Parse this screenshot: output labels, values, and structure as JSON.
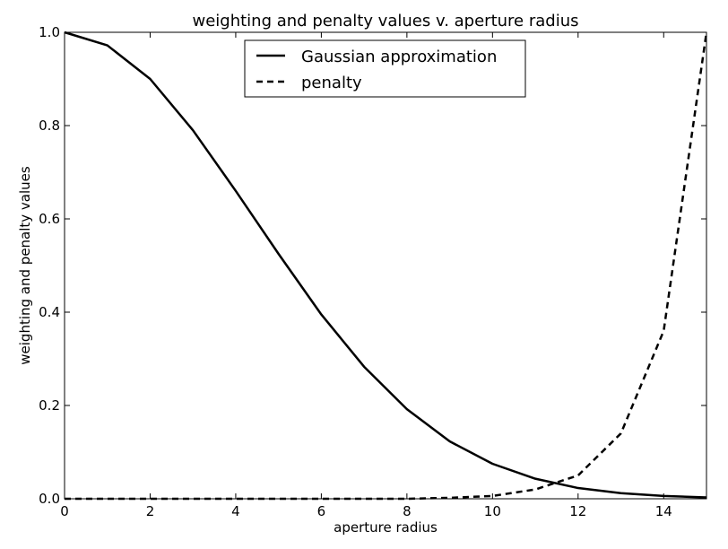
{
  "chart_data": {
    "type": "line",
    "title": "weighting and penalty values v. aperture radius",
    "xlabel": "aperture radius",
    "ylabel": "weighting and penalty values",
    "xlim": [
      0,
      15
    ],
    "ylim": [
      0,
      1.0
    ],
    "xticks": [
      0,
      2,
      4,
      6,
      8,
      10,
      12,
      14
    ],
    "yticks": [
      0.0,
      0.2,
      0.4,
      0.6,
      0.8,
      1.0
    ],
    "xtick_labels": [
      "0",
      "2",
      "4",
      "6",
      "8",
      "10",
      "12",
      "14"
    ],
    "ytick_labels": [
      "0.0",
      "0.2",
      "0.4",
      "0.6",
      "0.8",
      "1.0"
    ],
    "grid": false,
    "legend_placement": "upper-center",
    "x": [
      0,
      1,
      2,
      3,
      4,
      5,
      6,
      7,
      8,
      9,
      10,
      11,
      12,
      13,
      14,
      15
    ],
    "series": [
      {
        "name": "Gaussian approximation",
        "style": "solid",
        "color": "#000000",
        "values": [
          1.0,
          0.972,
          0.9,
          0.79,
          0.66,
          0.525,
          0.395,
          0.283,
          0.192,
          0.123,
          0.075,
          0.043,
          0.023,
          0.012,
          0.006,
          0.003
        ]
      },
      {
        "name": "penalty",
        "style": "dashed",
        "color": "#000000",
        "values": [
          0.0,
          0.0,
          0.0,
          0.0,
          0.0,
          0.0,
          0.0,
          0.0,
          0.0,
          0.002,
          0.006,
          0.02,
          0.05,
          0.14,
          0.36,
          1.0
        ]
      }
    ]
  }
}
